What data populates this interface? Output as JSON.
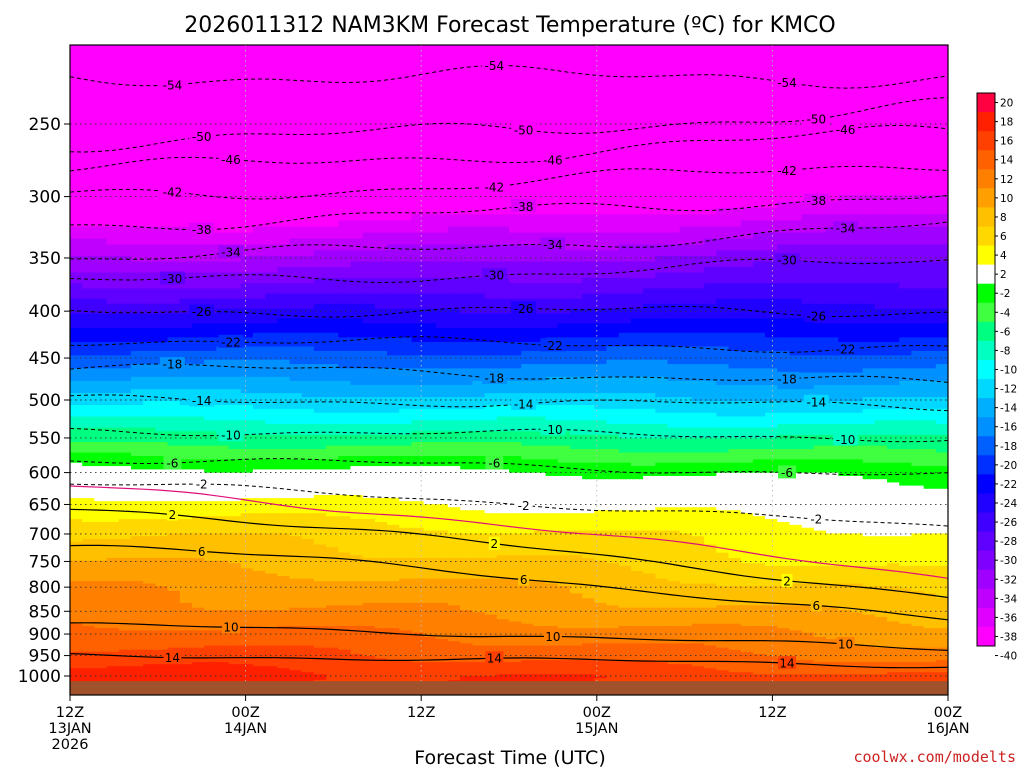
{
  "chart_data": {
    "type": "heatmap",
    "title": "2026011312 NAM3KM Forecast Temperature (ºC) for KMCO",
    "xlabel": "Forecast Time (UTC)",
    "ylabel": "",
    "credit": "coolwx.com/modelts",
    "x_hours_range": [
      0,
      60
    ],
    "y_pressure_range_hPa": [
      200,
      1030
    ],
    "y_ticks": [
      250,
      300,
      350,
      400,
      450,
      500,
      550,
      600,
      650,
      700,
      750,
      800,
      850,
      900,
      950,
      1000
    ],
    "y_tick_labels": [
      "250",
      "300",
      "350",
      "400",
      "450",
      "500",
      "550",
      "600",
      "650",
      "700",
      "750",
      "800",
      "850",
      "900",
      "950",
      "1000"
    ],
    "x_ticks": [
      {
        "hour": 0,
        "line1": "12Z",
        "line2": "13JAN",
        "line3": "2026"
      },
      {
        "hour": 12,
        "line1": "00Z",
        "line2": "14JAN",
        "line3": ""
      },
      {
        "hour": 24,
        "line1": "12Z",
        "line2": "",
        "line3": ""
      },
      {
        "hour": 36,
        "line1": "00Z",
        "line2": "15JAN",
        "line3": ""
      },
      {
        "hour": 48,
        "line1": "12Z",
        "line2": "",
        "line3": ""
      },
      {
        "hour": 60,
        "line1": "00Z",
        "line2": "16JAN",
        "line3": ""
      }
    ],
    "colorbar": {
      "labels": [
        "20",
        "18",
        "16",
        "14",
        "12",
        "10",
        "8",
        "6",
        "4",
        "2",
        "-2",
        "-4",
        "-6",
        "-8",
        "-10",
        "-12",
        "-14",
        "-16",
        "-18",
        "-20",
        "-22",
        "-24",
        "-26",
        "-28",
        "-30",
        "-32",
        "-34",
        "-36",
        "-38",
        "-40"
      ],
      "colors": [
        "#ff0040",
        "#ff2000",
        "#ff4000",
        "#ff6000",
        "#ff8000",
        "#ffa000",
        "#ffc000",
        "#ffd800",
        "#ffff00",
        "#ffffff",
        "#00ff00",
        "#40ff40",
        "#00ff80",
        "#00ffc0",
        "#00ffff",
        "#00d8ff",
        "#00b0ff",
        "#0090ff",
        "#0060ff",
        "#0030ff",
        "#0000ff",
        "#2000ff",
        "#4000ff",
        "#6000ff",
        "#8000ff",
        "#a000ff",
        "#c000ff",
        "#e000ff",
        "#ff00ff"
      ]
    },
    "temperature_profile": {
      "pressure_hPa": [
        200,
        250,
        300,
        350,
        400,
        450,
        500,
        550,
        600,
        650,
        700,
        750,
        800,
        850,
        900,
        950,
        1000
      ],
      "temp_start_C": [
        -56,
        -49,
        -42,
        -34,
        -26,
        -19,
        -13,
        -7,
        -1,
        3,
        6,
        8,
        10,
        11,
        13,
        15,
        17
      ],
      "temp_end_C": [
        -56,
        -46,
        -38,
        -30,
        -25,
        -19,
        -14,
        -8,
        -3,
        0,
        2,
        3,
        5,
        7,
        9,
        11,
        14
      ]
    },
    "contours": [
      {
        "level": -54,
        "style": "dashed",
        "pressure_start": 222,
        "pressure_end": 222
      },
      {
        "level": -50,
        "style": "dashed",
        "pressure_start": 262,
        "pressure_end": 240
      },
      {
        "level": -46,
        "style": "dashed",
        "pressure_start": 280,
        "pressure_end": 254
      },
      {
        "level": -42,
        "style": "dashed",
        "pressure_start": 300,
        "pressure_end": 275
      },
      {
        "level": -38,
        "style": "dashed",
        "pressure_start": 322,
        "pressure_end": 297
      },
      {
        "level": -34,
        "style": "dashed",
        "pressure_start": 350,
        "pressure_end": 323
      },
      {
        "level": -30,
        "style": "dashed",
        "pressure_start": 372,
        "pressure_end": 352
      },
      {
        "level": -26,
        "style": "dashed",
        "pressure_start": 400,
        "pressure_end": 400
      },
      {
        "level": -22,
        "style": "dashed",
        "pressure_start": 430,
        "pressure_end": 440
      },
      {
        "level": -18,
        "style": "dashed",
        "pressure_start": 460,
        "pressure_end": 480
      },
      {
        "level": -14,
        "style": "dashed",
        "pressure_start": 500,
        "pressure_end": 508
      },
      {
        "level": -10,
        "style": "dashed",
        "pressure_start": 540,
        "pressure_end": 550
      },
      {
        "level": -6,
        "style": "dashed",
        "pressure_start": 580,
        "pressure_end": 605
      },
      {
        "level": -2,
        "style": "dashed",
        "pressure_start": 617,
        "pressure_end": 690
      },
      {
        "level": 0,
        "style": "freezing",
        "pressure_start": 622,
        "pressure_end": 780
      },
      {
        "level": 2,
        "style": "solid",
        "pressure_start": 655,
        "pressure_end": 820
      },
      {
        "level": 6,
        "style": "solid",
        "pressure_start": 718,
        "pressure_end": 870
      },
      {
        "level": 10,
        "style": "solid",
        "pressure_start": 880,
        "pressure_end": 935
      },
      {
        "level": 14,
        "style": "solid",
        "pressure_start": 950,
        "pressure_end": 975
      }
    ]
  }
}
